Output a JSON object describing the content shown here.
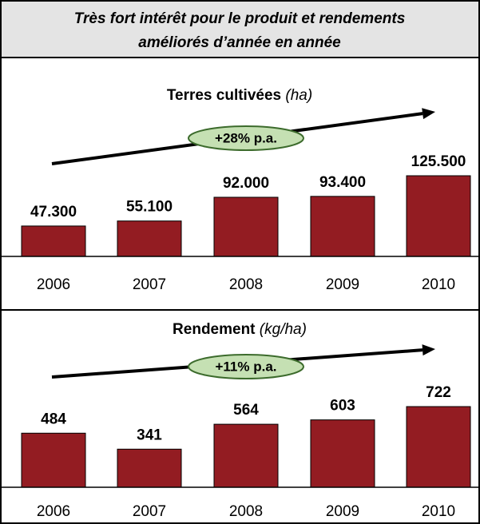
{
  "header": {
    "title_lines": [
      "Très fort intérêt pour le produit et rendements",
      "améliorés d’année en année"
    ]
  },
  "chart_data": [
    {
      "type": "bar",
      "title": "Terres cultivées",
      "unit": "(ha)",
      "annotation": "+28% p.a.",
      "categories": [
        "2006",
        "2007",
        "2008",
        "2009",
        "2010"
      ],
      "values": [
        47300,
        55100,
        92000,
        93400,
        125500
      ],
      "value_labels": [
        "47.300",
        "55.100",
        "92.000",
        "93.400",
        "125.500"
      ],
      "color": "#931c22"
    },
    {
      "type": "bar",
      "title": "Rendement",
      "unit": "(kg/ha)",
      "annotation": "+11% p.a.",
      "categories": [
        "2006",
        "2007",
        "2008",
        "2009",
        "2010"
      ],
      "values": [
        484,
        341,
        564,
        603,
        722
      ],
      "color": "#931c22"
    }
  ]
}
